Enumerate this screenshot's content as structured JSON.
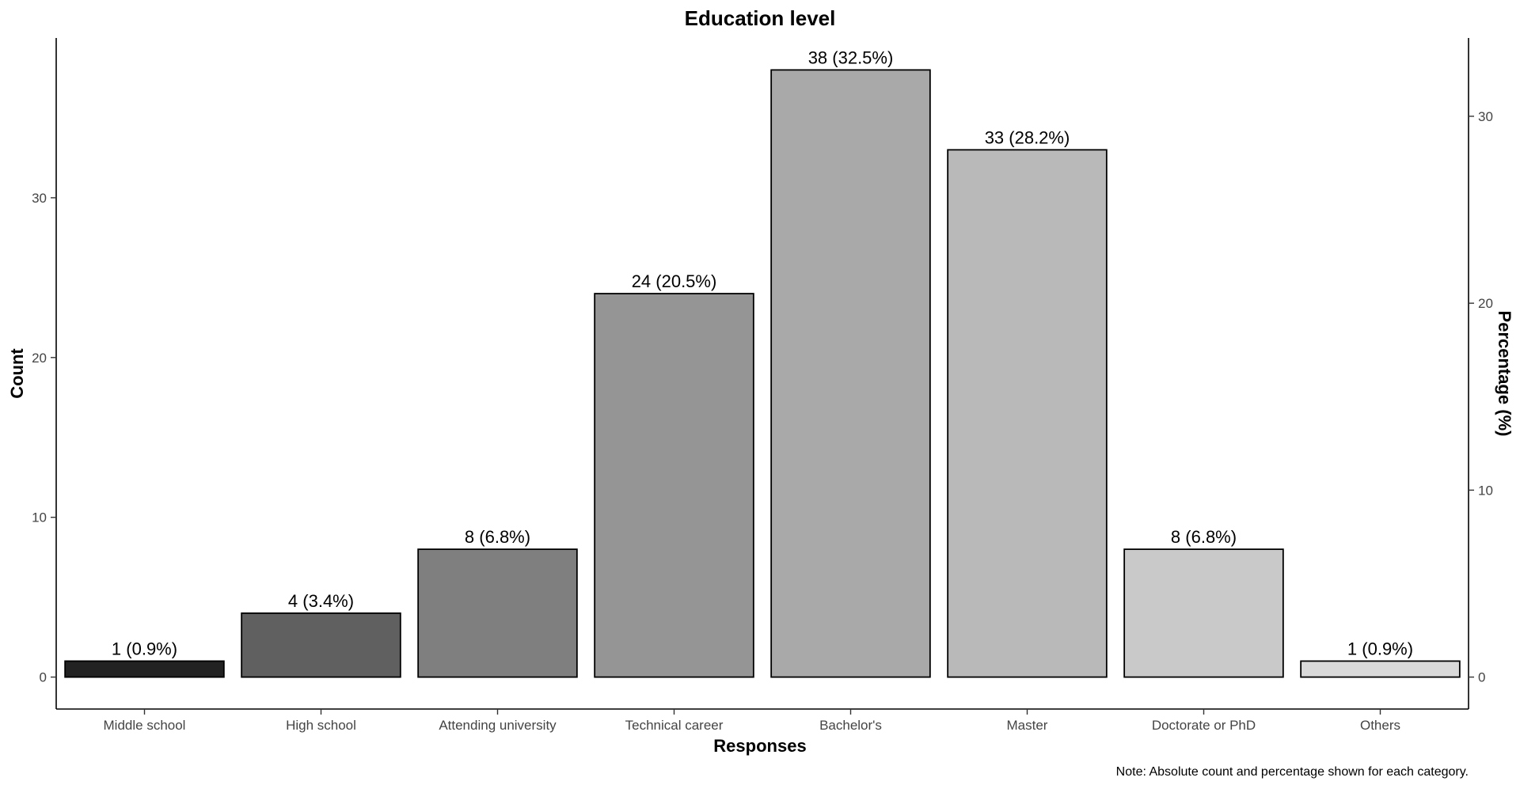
{
  "chart_data": {
    "type": "bar",
    "title": "Education level",
    "xlabel": "Responses",
    "ylabel": "Count",
    "y2label": "Percentage (%)",
    "note": "Note: Absolute count and percentage shown for each category.",
    "categories": [
      "Middle school",
      "High school",
      "Attending university",
      "Technical career",
      "Bachelor's",
      "Master",
      "Doctorate or PhD",
      "Others"
    ],
    "values": [
      1,
      4,
      8,
      24,
      38,
      33,
      8,
      1
    ],
    "data_labels": [
      "1 (0.9%)",
      "4 (3.4%)",
      "8 (6.8%)",
      "24 (20.5%)",
      "38 (32.5%)",
      "33 (28.2%)",
      "8 (6.8%)",
      "1 (0.9%)"
    ],
    "colors": [
      "#222222",
      "#606060",
      "#7f7f7f",
      "#959595",
      "#a9a9a9",
      "#b9b9b9",
      "#c9c9c9",
      "#d9d9d9"
    ],
    "ylim": [
      -2,
      40
    ],
    "y_ticks": [
      0,
      10,
      20,
      30
    ],
    "y_tick_labels": [
      "0",
      "10",
      "20",
      "30"
    ],
    "y2_ticks": [
      0,
      10,
      20,
      30
    ],
    "y2_tick_labels": [
      "0",
      "10",
      "20",
      "30"
    ],
    "y2_scale_total": 117,
    "grid": false,
    "legend": "none"
  }
}
